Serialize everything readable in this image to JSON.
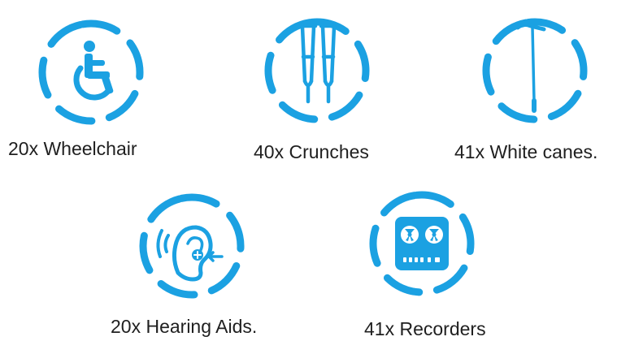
{
  "accent_color": "#1ba1e2",
  "text_color": "#1f1f1f",
  "items": [
    {
      "icon": "wheelchair-icon",
      "label": "20x Wheelchair"
    },
    {
      "icon": "crutches-icon",
      "label": "40x Crunches"
    },
    {
      "icon": "white-cane-icon",
      "label": "41x White canes."
    },
    {
      "icon": "hearing-aid-icon",
      "label": "20x Hearing Aids."
    },
    {
      "icon": "recorder-icon",
      "label": "41x Recorders"
    }
  ]
}
